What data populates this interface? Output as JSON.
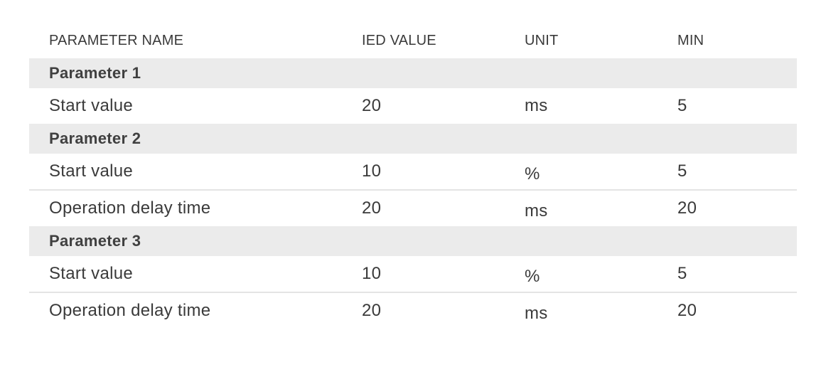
{
  "table": {
    "headers": {
      "name": "PARAMETER NAME",
      "ied_value": "IED VALUE",
      "unit": "UNIT",
      "min": "MIN"
    },
    "groups": [
      {
        "title": "Parameter 1",
        "rows": [
          {
            "name": "Start value",
            "ied_value": "20",
            "unit": "ms",
            "min": "5"
          }
        ]
      },
      {
        "title": "Parameter 2",
        "rows": [
          {
            "name": "Start value",
            "ied_value": "10",
            "unit": "%",
            "min": "5"
          },
          {
            "name": "Operation delay time",
            "ied_value": "20",
            "unit": "ms",
            "min": "20"
          }
        ]
      },
      {
        "title": "Parameter 3",
        "rows": [
          {
            "name": "Start value",
            "ied_value": "10",
            "unit": "%",
            "min": "5"
          },
          {
            "name": "Operation delay time",
            "ied_value": "20",
            "unit": "ms",
            "min": "20"
          }
        ]
      }
    ]
  }
}
